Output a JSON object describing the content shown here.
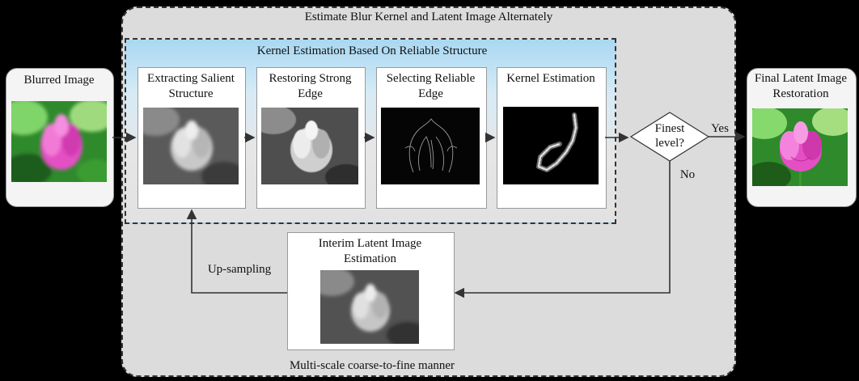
{
  "outer_title": "Estimate Blur Kernel and Latent Image Alternately",
  "inner_title": "Kernel Estimation Based On Reliable Structure",
  "input": {
    "label": "Blurred Image",
    "image_kind": "color-lotus-photo"
  },
  "steps": [
    {
      "label": "Extracting Salient Structure",
      "image_kind": "gray-structure-photo"
    },
    {
      "label": "Restoring Strong Edge",
      "image_kind": "gray-edge-photo"
    },
    {
      "label": "Selecting Reliable Edge",
      "image_kind": "edge-map"
    },
    {
      "label": "Kernel Estimation",
      "image_kind": "blur-kernel"
    }
  ],
  "decision": {
    "label": "Finest level?",
    "yes_label": "Yes",
    "no_label": "No"
  },
  "output": {
    "label": "Final Latent Image Restoration",
    "image_kind": "color-lotus-photo"
  },
  "interim": {
    "label": "Interim Latent Image Estimation",
    "image_kind": "gray-latent-photo"
  },
  "upsampling_label": "Up-sampling",
  "caption": "Multi-scale coarse-to-fine manner",
  "colors": {
    "background": "#000000",
    "outer_box": "#d9d9d9",
    "inner_top": "#a9d8f2",
    "inner_bottom": "#e2e2e2",
    "lotus_pink": "#e44fc4",
    "leaf_green": "#2f8a2c"
  }
}
